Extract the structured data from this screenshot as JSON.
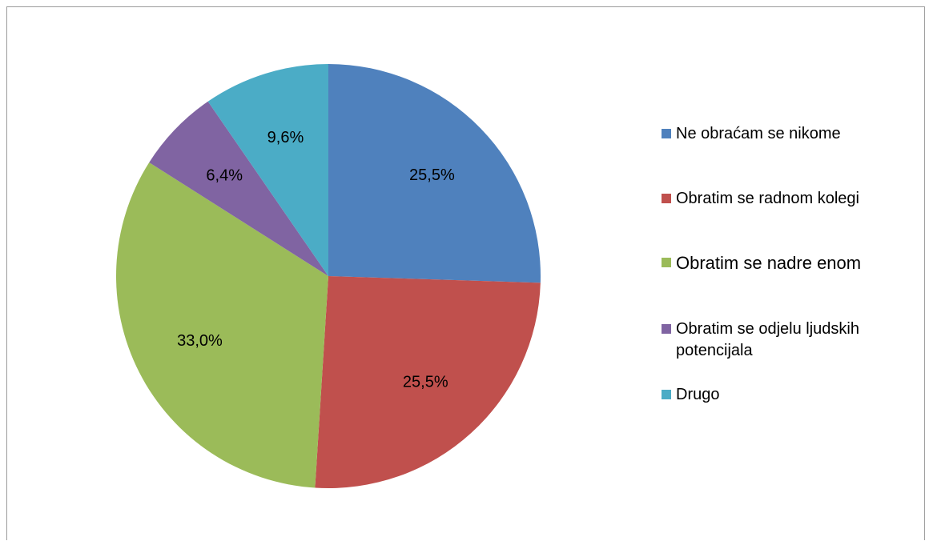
{
  "chart_data": {
    "type": "pie",
    "title": "",
    "categories": [
      "Ne obraćam se nikome",
      "Obratim se radnom kolegi",
      "Obratim se nadre enom",
      "Obratim se odjelu ljudskih potencijala",
      "Drugo"
    ],
    "values": [
      25.5,
      25.5,
      33.0,
      6.4,
      9.6
    ],
    "value_labels": [
      "25,5%",
      "25,5%",
      "33,0%",
      "6,4%",
      "9,6%"
    ],
    "colors": [
      "#4F81BD",
      "#C0504D",
      "#9BBB59",
      "#8064A2",
      "#4BACC6"
    ],
    "start_angle": "12 o'clock",
    "direction": "clockwise",
    "legend_position": "right"
  },
  "legend": {
    "items": [
      {
        "label": "Ne obraćam se nikome",
        "color": "#4F81BD"
      },
      {
        "label": "Obratim se radnom kolegi",
        "color": "#C0504D"
      },
      {
        "label": "Obratim se nadre enom",
        "color": "#9BBB59"
      },
      {
        "label": "Obratim se odjelu ljudskih potencijala",
        "color": "#8064A2"
      },
      {
        "label": "Drugo",
        "color": "#4BACC6"
      }
    ]
  }
}
